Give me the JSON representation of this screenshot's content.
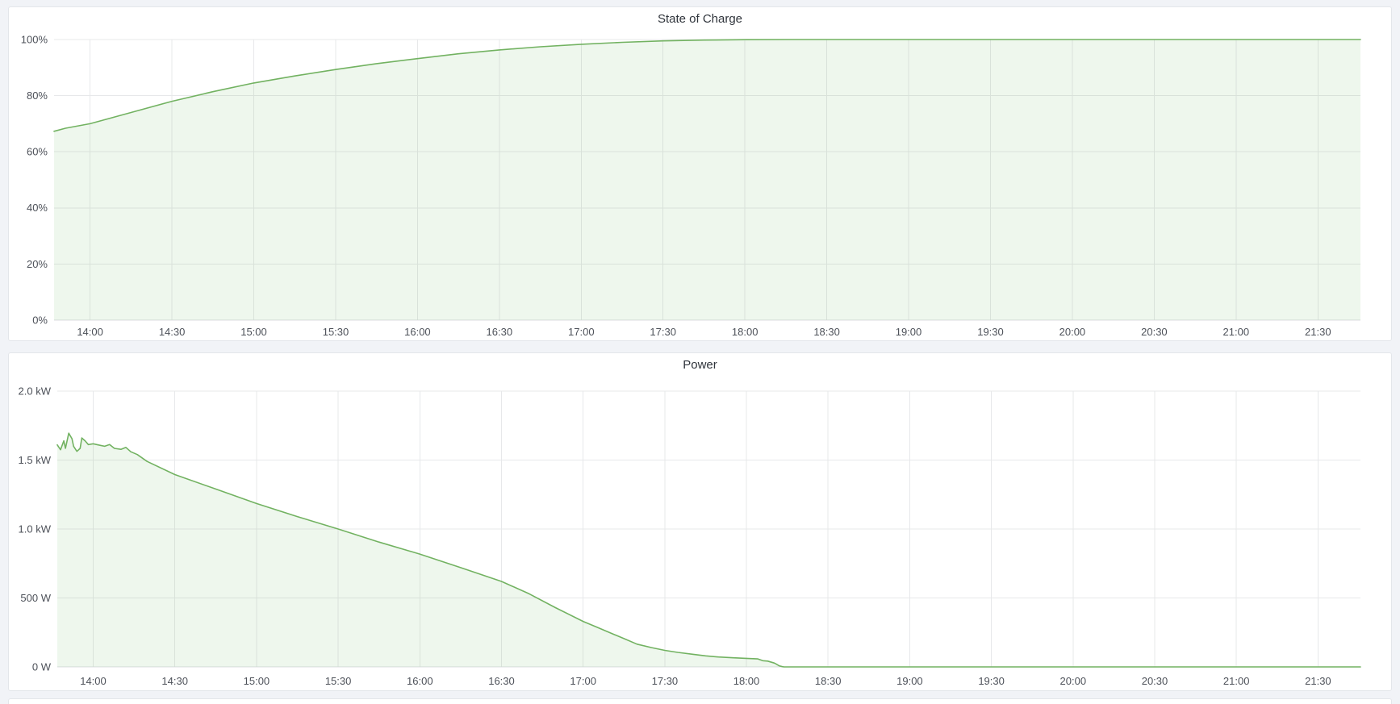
{
  "page": {
    "background": "#f1f3f7",
    "panel_background": "#ffffff",
    "panel_border": "#e3e6ea"
  },
  "colors": {
    "series_green_line": "#72b261",
    "series_green_fill": "rgba(115,191,105,0.12)",
    "grid_line": "#e7e8ea",
    "axis_text": "#4d5159",
    "title_text": "#2f343b"
  },
  "chart_data": [
    {
      "type": "area",
      "title": "State of Charge",
      "ylabel": "",
      "xlabel": "",
      "legend": "none",
      "grid": true,
      "xlim": [
        13.78,
        21.76
      ],
      "ylim": [
        0,
        100
      ],
      "x_ticks": [
        {
          "value": 14.0,
          "label": "14:00"
        },
        {
          "value": 14.5,
          "label": "14:30"
        },
        {
          "value": 15.0,
          "label": "15:00"
        },
        {
          "value": 15.5,
          "label": "15:30"
        },
        {
          "value": 16.0,
          "label": "16:00"
        },
        {
          "value": 16.5,
          "label": "16:30"
        },
        {
          "value": 17.0,
          "label": "17:00"
        },
        {
          "value": 17.5,
          "label": "17:30"
        },
        {
          "value": 18.0,
          "label": "18:00"
        },
        {
          "value": 18.5,
          "label": "18:30"
        },
        {
          "value": 19.0,
          "label": "19:00"
        },
        {
          "value": 19.5,
          "label": "19:30"
        },
        {
          "value": 20.0,
          "label": "20:00"
        },
        {
          "value": 20.5,
          "label": "20:30"
        },
        {
          "value": 21.0,
          "label": "21:00"
        },
        {
          "value": 21.5,
          "label": "21:30"
        }
      ],
      "y_ticks": [
        {
          "value": 0,
          "label": "0%"
        },
        {
          "value": 20,
          "label": "20%"
        },
        {
          "value": 40,
          "label": "40%"
        },
        {
          "value": 60,
          "label": "60%"
        },
        {
          "value": 80,
          "label": "80%"
        },
        {
          "value": 100,
          "label": "100%"
        }
      ],
      "series": [
        {
          "name": "State of Charge",
          "points": [
            [
              13.78,
              67.3
            ],
            [
              13.85,
              68.4
            ],
            [
              14.0,
              70.0
            ],
            [
              14.25,
              74.0
            ],
            [
              14.5,
              78.0
            ],
            [
              14.75,
              81.4
            ],
            [
              15.0,
              84.5
            ],
            [
              15.25,
              87.0
            ],
            [
              15.5,
              89.3
            ],
            [
              15.75,
              91.4
            ],
            [
              16.0,
              93.2
            ],
            [
              16.25,
              94.9
            ],
            [
              16.5,
              96.3
            ],
            [
              16.75,
              97.4
            ],
            [
              17.0,
              98.3
            ],
            [
              17.25,
              99.0
            ],
            [
              17.5,
              99.5
            ],
            [
              17.75,
              99.8
            ],
            [
              18.0,
              99.95
            ],
            [
              18.3,
              100
            ],
            [
              21.76,
              100
            ]
          ]
        }
      ]
    },
    {
      "type": "area",
      "title": "Power",
      "ylabel": "",
      "xlabel": "",
      "legend": "none",
      "grid": true,
      "xlim": [
        13.78,
        21.76
      ],
      "ylim": [
        0,
        2000
      ],
      "x_ticks": [
        {
          "value": 14.0,
          "label": "14:00"
        },
        {
          "value": 14.5,
          "label": "14:30"
        },
        {
          "value": 15.0,
          "label": "15:00"
        },
        {
          "value": 15.5,
          "label": "15:30"
        },
        {
          "value": 16.0,
          "label": "16:00"
        },
        {
          "value": 16.5,
          "label": "16:30"
        },
        {
          "value": 17.0,
          "label": "17:00"
        },
        {
          "value": 17.5,
          "label": "17:30"
        },
        {
          "value": 18.0,
          "label": "18:00"
        },
        {
          "value": 18.5,
          "label": "18:30"
        },
        {
          "value": 19.0,
          "label": "19:00"
        },
        {
          "value": 19.5,
          "label": "19:30"
        },
        {
          "value": 20.0,
          "label": "20:00"
        },
        {
          "value": 20.5,
          "label": "20:30"
        },
        {
          "value": 21.0,
          "label": "21:00"
        },
        {
          "value": 21.5,
          "label": "21:30"
        }
      ],
      "y_ticks": [
        {
          "value": 0,
          "label": "0 W"
        },
        {
          "value": 500,
          "label": "500 W"
        },
        {
          "value": 1000,
          "label": "1.0 kW"
        },
        {
          "value": 1500,
          "label": "1.5 kW"
        },
        {
          "value": 2000,
          "label": "2.0 kW"
        }
      ],
      "series": [
        {
          "name": "Power",
          "points": [
            [
              13.78,
              1610
            ],
            [
              13.8,
              1575
            ],
            [
              13.82,
              1640
            ],
            [
              13.83,
              1585
            ],
            [
              13.85,
              1695
            ],
            [
              13.87,
              1655
            ],
            [
              13.88,
              1600
            ],
            [
              13.9,
              1563
            ],
            [
              13.92,
              1585
            ],
            [
              13.93,
              1660
            ],
            [
              13.95,
              1640
            ],
            [
              13.97,
              1612
            ],
            [
              14.0,
              1618
            ],
            [
              14.03,
              1610
            ],
            [
              14.07,
              1600
            ],
            [
              14.1,
              1612
            ],
            [
              14.13,
              1585
            ],
            [
              14.17,
              1578
            ],
            [
              14.2,
              1592
            ],
            [
              14.23,
              1560
            ],
            [
              14.27,
              1540
            ],
            [
              14.33,
              1490
            ],
            [
              14.5,
              1395
            ],
            [
              14.75,
              1290
            ],
            [
              15.0,
              1185
            ],
            [
              15.25,
              1090
            ],
            [
              15.5,
              1000
            ],
            [
              15.75,
              905
            ],
            [
              16.0,
              818
            ],
            [
              16.25,
              720
            ],
            [
              16.5,
              620
            ],
            [
              16.67,
              530
            ],
            [
              16.83,
              430
            ],
            [
              17.0,
              330
            ],
            [
              17.08,
              290
            ],
            [
              17.17,
              245
            ],
            [
              17.25,
              205
            ],
            [
              17.33,
              165
            ],
            [
              17.42,
              140
            ],
            [
              17.5,
              120
            ],
            [
              17.58,
              105
            ],
            [
              17.67,
              92
            ],
            [
              17.75,
              80
            ],
            [
              17.83,
              72
            ],
            [
              17.92,
              66
            ],
            [
              18.0,
              62
            ],
            [
              18.07,
              58
            ],
            [
              18.1,
              45
            ],
            [
              18.13,
              42
            ],
            [
              18.17,
              28
            ],
            [
              18.18,
              22
            ],
            [
              18.2,
              8
            ],
            [
              18.22,
              2
            ],
            [
              18.23,
              0
            ],
            [
              21.76,
              0
            ]
          ]
        }
      ]
    }
  ]
}
